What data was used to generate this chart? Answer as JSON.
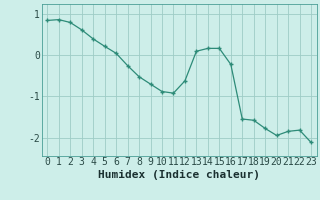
{
  "x": [
    0,
    1,
    2,
    3,
    4,
    5,
    6,
    7,
    8,
    9,
    10,
    11,
    12,
    13,
    14,
    15,
    16,
    17,
    18,
    19,
    20,
    21,
    22,
    23
  ],
  "y": [
    0.85,
    0.87,
    0.8,
    0.62,
    0.4,
    0.22,
    0.05,
    -0.25,
    -0.52,
    -0.7,
    -0.88,
    -0.92,
    -0.62,
    0.1,
    0.17,
    0.17,
    -0.22,
    -1.55,
    -1.58,
    -1.78,
    -1.95,
    -1.85,
    -1.82,
    -2.12
  ],
  "line_color": "#2d8b78",
  "marker": "+",
  "marker_color": "#2d8b78",
  "background_color": "#cdeee9",
  "grid_color": "#9eccc6",
  "xlabel": "Humidex (Indice chaleur)",
  "ytick_labels": [
    "1",
    "0",
    "-1",
    "-2"
  ],
  "ytick_vals": [
    1,
    0,
    -1,
    -2
  ],
  "xlim": [
    -0.5,
    23.5
  ],
  "ylim": [
    -2.45,
    1.25
  ],
  "xlabel_fontsize": 8,
  "tick_fontsize": 7
}
